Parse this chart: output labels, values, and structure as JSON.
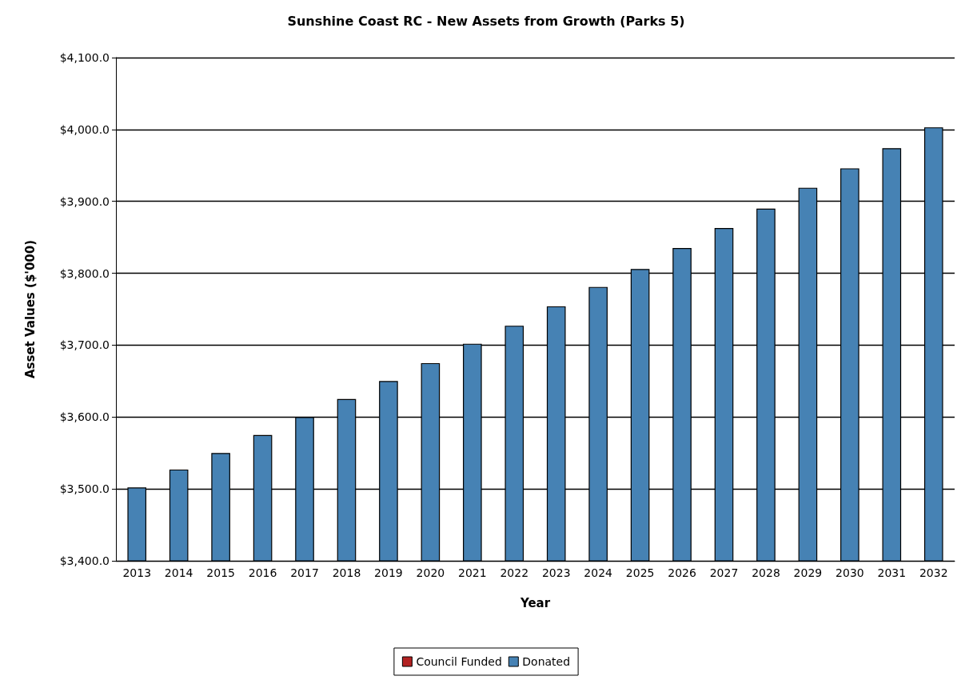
{
  "chart_data": {
    "type": "bar",
    "title": "Sunshine Coast RC - New Assets from Growth (Parks 5)",
    "xlabel": "Year",
    "ylabel": "Asset Values ($'000)",
    "categories": [
      "2013",
      "2014",
      "2015",
      "2016",
      "2017",
      "2018",
      "2019",
      "2020",
      "2021",
      "2022",
      "2023",
      "2024",
      "2025",
      "2026",
      "2027",
      "2028",
      "2029",
      "2030",
      "2031",
      "2032"
    ],
    "series": [
      {
        "name": "Council Funded",
        "color": "#b22222",
        "values": [
          null,
          null,
          null,
          null,
          null,
          null,
          null,
          null,
          null,
          null,
          null,
          null,
          null,
          null,
          null,
          null,
          null,
          null,
          null,
          null
        ]
      },
      {
        "name": "Donated",
        "color": "#4682b4",
        "values": [
          3502,
          3527,
          3550,
          3575,
          3600,
          3625,
          3650,
          3675,
          3702,
          3727,
          3754,
          3781,
          3806,
          3835,
          3863,
          3890,
          3919,
          3946,
          3974,
          4003
        ]
      }
    ],
    "ylim": [
      3400,
      4100
    ],
    "yticks": [
      {
        "value": 3400,
        "label": "$3,400.0"
      },
      {
        "value": 3500,
        "label": "$3,500.0"
      },
      {
        "value": 3600,
        "label": "$3,600.0"
      },
      {
        "value": 3700,
        "label": "$3,700.0"
      },
      {
        "value": 3800,
        "label": "$3,800.0"
      },
      {
        "value": 3900,
        "label": "$3,900.0"
      },
      {
        "value": 4000,
        "label": "$4,000.0"
      },
      {
        "value": 4100,
        "label": "$4,100.0"
      }
    ],
    "grid": "y",
    "legend": "bottom",
    "stacked": true
  }
}
